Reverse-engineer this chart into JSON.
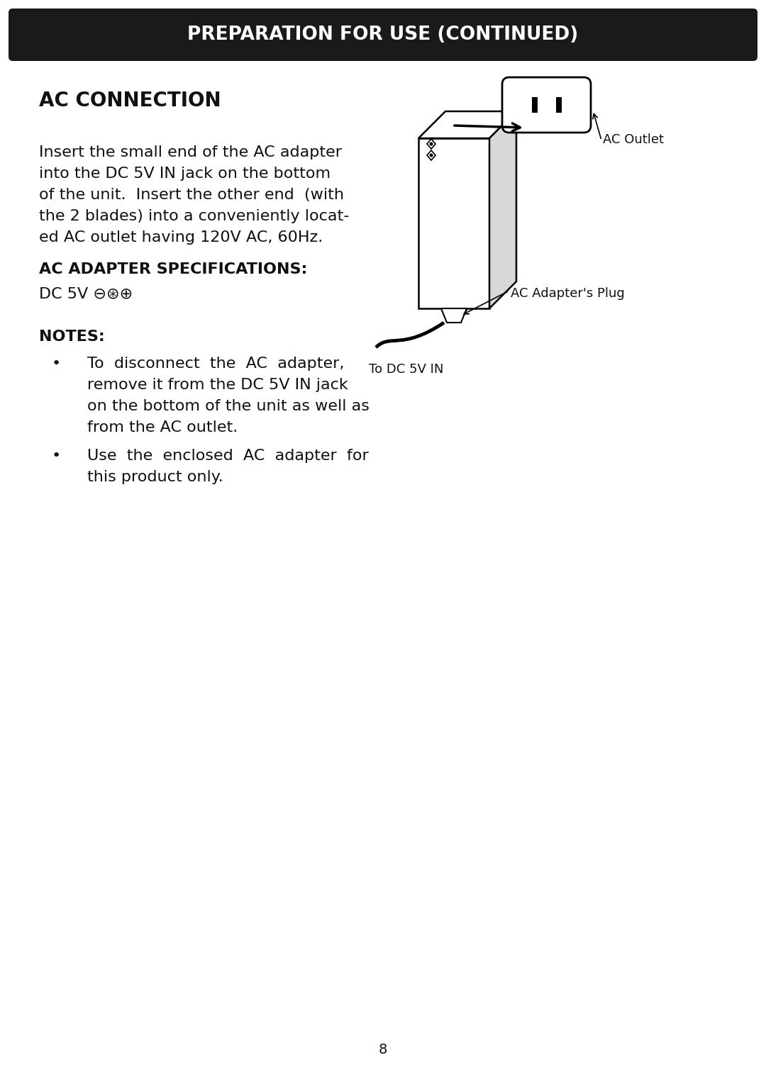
{
  "bg_color": "#ffffff",
  "header_bg": "#1a1a1a",
  "header_text": "PREPARATION FOR USE (CONTINUED)",
  "header_text_color": "#ffffff",
  "header_fontsize": 19,
  "section_title": "AC CONNECTION",
  "section_title_fontsize": 20,
  "body_line1": "Insert the small end of the AC adapter",
  "body_line2": "into the DC 5V IN jack on the bottom",
  "body_line3": "of the unit.  Insert the other end  (with",
  "body_line4": "the 2 blades) into a conveniently locat-",
  "body_line5": "ed AC outlet having 120V AC, 60Hz.",
  "body_fontsize": 16,
  "specs_title": "AC ADAPTER SPECIFICATIONS:",
  "specs_title_fontsize": 16,
  "specs_value": "DC 5V ⊖⊛⊕",
  "specs_value_fontsize": 16,
  "notes_title": "NOTES:",
  "notes_title_fontsize": 16,
  "bullet1_line1": "To  disconnect  the  AC  adapter,",
  "bullet1_line2": "remove it from the DC 5V IN jack",
  "bullet1_line3": "on the bottom of the unit as well as",
  "bullet1_line4": "from the AC outlet.",
  "bullet2_line1": "Use  the  enclosed  AC  adapter  for",
  "bullet2_line2": "this product only.",
  "notes_fontsize": 16,
  "page_number": "8",
  "diagram_label_outlet": "AC Outlet",
  "diagram_label_plug": "AC Adapter's Plug",
  "diagram_label_dc": "To DC 5V IN",
  "diagram_fontsize": 13
}
